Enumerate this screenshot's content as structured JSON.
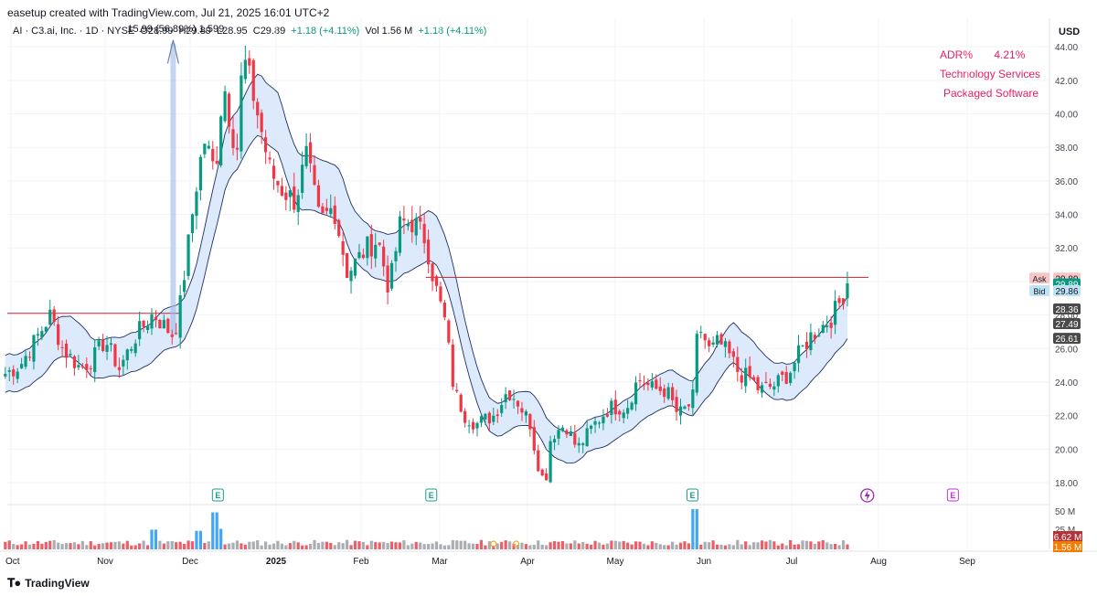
{
  "header": {
    "credit": "easetup created with TradingView.com, Jul 21, 2025 16:01 UTC+2",
    "symbol": "AI · C3.ai, Inc. · 1D · NYSE",
    "open": "O28.99",
    "high": "H29.89",
    "low": "L28.95",
    "close": "C29.89",
    "change": "+1.18 (+4.11%)",
    "vol_label": "Vol",
    "vol_value": "1.56 M",
    "vol_change": "+1.18 (+4.11%)",
    "measure_label": "15.99 (56.89%) 1,599"
  },
  "axis_currency": "USD",
  "info_box": {
    "adr_label": "ADR%",
    "adr_value": "4.21%",
    "sector": "Technology Services",
    "industry": "Packaged Software"
  },
  "price_tags": [
    {
      "label": "Ask",
      "value": "29.89",
      "color": "#f7c6c6"
    },
    {
      "value": "29.89",
      "color": "#089981"
    },
    {
      "label": "Bid",
      "value": "29.86",
      "color": "#bfe3f5"
    },
    {
      "value": "28.36",
      "color": "#4a4a4a"
    },
    {
      "value": "27.49",
      "color": "#4a4a4a"
    },
    {
      "value": "26.61",
      "color": "#4a4a4a"
    }
  ],
  "volume_tags": [
    {
      "value": "6.62 M",
      "color": "#b2343b"
    },
    {
      "value": "1.56 M",
      "color": "#f57c00"
    }
  ],
  "footer": {
    "brand": "TradingView"
  },
  "colors": {
    "up": "#089981",
    "down": "#f23645",
    "band_fill": "#d6e6fa",
    "band_line": "#1e2f63",
    "hline": "#b22833",
    "earnings": "#1a9c8a",
    "upcoming": "#c330d6"
  },
  "chart_data": {
    "type": "candlestick",
    "ticker": "AI",
    "timeframe": "1D",
    "currency": "USD",
    "ylim": [
      16.8,
      44.5
    ],
    "y_ticks": [
      18,
      20,
      22,
      24,
      26,
      28,
      30,
      32,
      34,
      36,
      38,
      40,
      42,
      44
    ],
    "x_ticks": [
      "Oct",
      "Nov",
      "Dec",
      "2025",
      "Feb",
      "Mar",
      "Apr",
      "May",
      "Jun",
      "Jul",
      "Aug",
      "Sep"
    ],
    "volume_ticks": [
      "50 M",
      "25 M"
    ],
    "earnings_markers": [
      "E",
      "E",
      "E",
      "E"
    ],
    "horizontal_lines": [
      28.1,
      30.25
    ],
    "price_path": [
      [
        "Sep 30",
        24.5
      ],
      [
        "Oct 4",
        25.0
      ],
      [
        "Oct 10",
        26.8
      ],
      [
        "Oct 14",
        28.0
      ],
      [
        "Oct 18",
        26.0
      ],
      [
        "Oct 24",
        24.8
      ],
      [
        "Oct 28",
        25.4
      ],
      [
        "Nov 1",
        26.5
      ],
      [
        "Nov 6",
        24.8
      ],
      [
        "Nov 12",
        26.8
      ],
      [
        "Nov 18",
        28.1
      ],
      [
        "Nov 21",
        27.5
      ],
      [
        "Nov 25",
        26.8
      ],
      [
        "Nov 27",
        28.0
      ],
      [
        "Dec 3",
        35.5
      ],
      [
        "Dec 6",
        38.5
      ],
      [
        "Dec 10",
        36.5
      ],
      [
        "Dec 13",
        42.0
      ],
      [
        "Dec 16",
        39.0
      ],
      [
        "Dec 18",
        38.0
      ],
      [
        "Dec 20",
        43.5
      ],
      [
        "Dec 24",
        41.0
      ],
      [
        "Dec 30",
        36.5
      ],
      [
        "Jan 3",
        35.5
      ],
      [
        "Jan 8",
        34.8
      ],
      [
        "Jan 12",
        37.5
      ],
      [
        "Jan 17",
        33.5
      ],
      [
        "Jan 22",
        34.5
      ],
      [
        "Jan 27",
        30.5
      ],
      [
        "Feb 3",
        32.0
      ],
      [
        "Feb 7",
        32.5
      ],
      [
        "Feb 11",
        29.5
      ],
      [
        "Feb 15",
        33.5
      ],
      [
        "Feb 20",
        33.5
      ],
      [
        "Feb 24",
        32.5
      ],
      [
        "Feb 27",
        30.0
      ],
      [
        "Mar 3",
        27.5
      ],
      [
        "Mar 6",
        23.5
      ],
      [
        "Mar 10",
        22.0
      ],
      [
        "Mar 14",
        21.5
      ],
      [
        "Mar 20",
        22.0
      ],
      [
        "Mar 25",
        23.5
      ],
      [
        "Mar 28",
        23.0
      ],
      [
        "Apr 2",
        21.5
      ],
      [
        "Apr 4",
        19.5
      ],
      [
        "Apr 7",
        17.8
      ],
      [
        "Apr 9",
        20.8
      ],
      [
        "Apr 14",
        21.5
      ],
      [
        "Apr 18",
        20.0
      ],
      [
        "Apr 24",
        21.5
      ],
      [
        "Apr 29",
        22.5
      ],
      [
        "May 5",
        22.5
      ],
      [
        "May 9",
        24.2
      ],
      [
        "May 14",
        23.6
      ],
      [
        "May 19",
        23.5
      ],
      [
        "May 23",
        22.0
      ],
      [
        "May 28",
        22.8
      ],
      [
        "May 30",
        27.5
      ],
      [
        "Jun 3",
        25.8
      ],
      [
        "Jun 6",
        26.4
      ],
      [
        "Jun 10",
        25.5
      ],
      [
        "Jun 13",
        24.5
      ],
      [
        "Jun 17",
        24.2
      ],
      [
        "Jun 20",
        23.5
      ],
      [
        "Jun 25",
        23.8
      ],
      [
        "Jun 30",
        24.5
      ],
      [
        "Jul 3",
        25.5
      ],
      [
        "Jul 8",
        26.8
      ],
      [
        "Jul 11",
        27.2
      ],
      [
        "Jul 15",
        27.8
      ],
      [
        "Jul 18",
        28.7
      ],
      [
        "Jul 21",
        29.89
      ]
    ],
    "last": {
      "open": 28.99,
      "high": 29.89,
      "low": 28.95,
      "close": 29.89,
      "change": 1.18,
      "change_pct": 4.11
    }
  }
}
